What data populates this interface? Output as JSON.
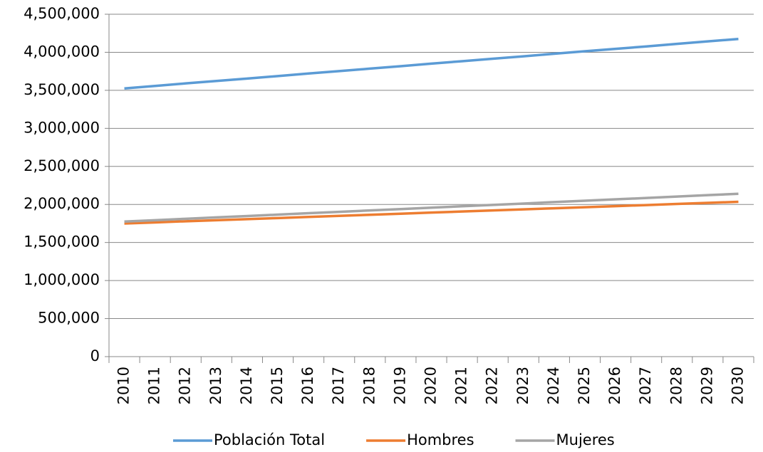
{
  "chart_data": {
    "type": "line",
    "categories": [
      "2010",
      "2011",
      "2012",
      "2013",
      "2014",
      "2015",
      "2016",
      "2017",
      "2018",
      "2019",
      "2020",
      "2021",
      "2022",
      "2023",
      "2024",
      "2025",
      "2026",
      "2027",
      "2028",
      "2029",
      "2030"
    ],
    "series": [
      {
        "name": "Población Total",
        "color": "#5b9bd5",
        "values": [
          3525000,
          3557000,
          3591000,
          3623000,
          3655000,
          3687000,
          3721000,
          3753000,
          3785000,
          3817000,
          3851000,
          3883000,
          3915000,
          3947000,
          3981000,
          4013000,
          4045000,
          4077000,
          4111000,
          4143000,
          4175000
        ]
      },
      {
        "name": "Hombres",
        "color": "#ed7d31",
        "values": [
          1750000,
          1764000,
          1779000,
          1793000,
          1807000,
          1821000,
          1836000,
          1850000,
          1864000,
          1878000,
          1893000,
          1907000,
          1921000,
          1935000,
          1950000,
          1964000,
          1978000,
          1992000,
          2007000,
          2021000,
          2035000
        ]
      },
      {
        "name": "Mujeres",
        "color": "#a5a5a5",
        "values": [
          1775000,
          1793000,
          1812000,
          1830000,
          1848000,
          1866000,
          1885000,
          1903000,
          1921000,
          1939000,
          1958000,
          1976000,
          1994000,
          2012000,
          2031000,
          2049000,
          2067000,
          2085000,
          2104000,
          2122000,
          2140000
        ]
      }
    ],
    "ylim": [
      0,
      4500000
    ],
    "yticks": [
      0,
      {
        "value": 500000,
        "label": "500,000"
      },
      {
        "value": 1000000,
        "label": "1,000,000"
      },
      {
        "value": 1500000,
        "label": "1,500,000"
      },
      {
        "value": 2000000,
        "label": "2,000,000"
      },
      {
        "value": 2500000,
        "label": "2,500,000"
      },
      {
        "value": 3000000,
        "label": "3,000,000"
      },
      {
        "value": 3500000,
        "label": "3,500,000"
      },
      {
        "value": 4000000,
        "label": "4,000,000"
      },
      {
        "value": 4500000,
        "label": "4,500,000"
      }
    ],
    "grid": true,
    "legend": "bottom"
  }
}
